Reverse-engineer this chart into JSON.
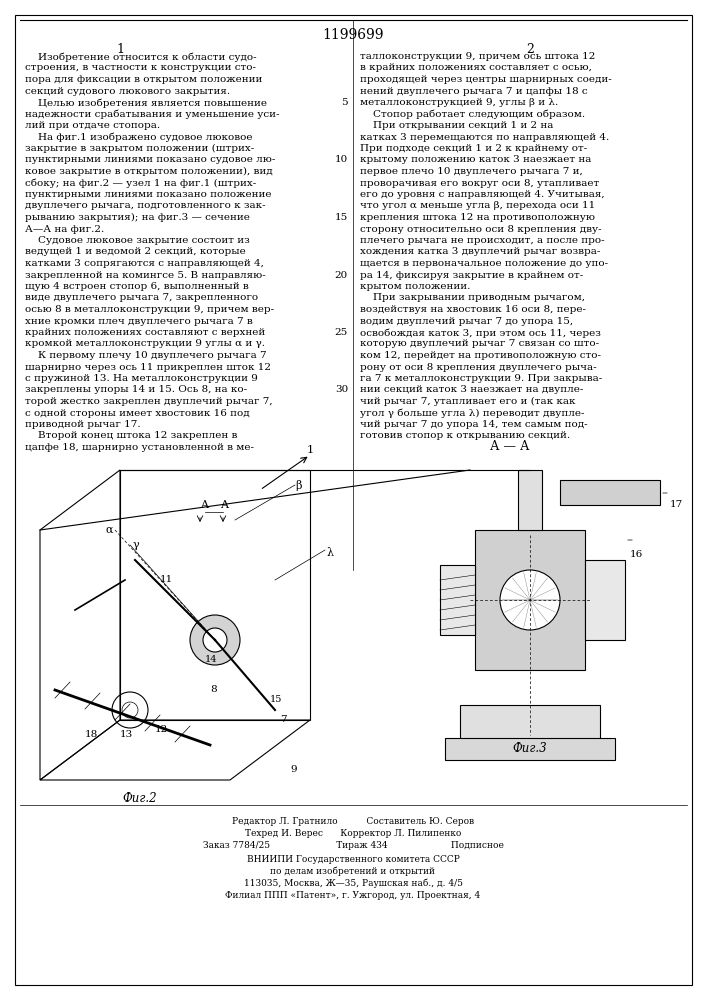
{
  "patent_number": "1199699",
  "col1_header": "1",
  "col2_header": "2",
  "background_color": "#ffffff",
  "text_color": "#000000",
  "col1_text": "    Изобретение относится к области судо-\nстроения, в частности к конструкции сто-\nпора для фиксации в открытом положении\nсекций судового люкового закрытия.\n    Целью изобретения является повышение\nнадежности срабатывания и уменьшение уси-\nлий при отдаче стопора.\n    На фиг.1 изображено судовое люковое\nзакрытие в закрытом положении (штрих-\nпунктирными линиями показано судовое лю-\nковое закрытие в открытом положении), вид\nсбоку; на фиг.2 — узел 1 на фиг.1 (штрих-\nпунктирными линиями показано положение\nдвуплечего рычага, подготовленного к зак-\nрыванию закрытия); на фиг.3 — сечение\nА—А на фиг.2.\n    Судовое люковое закрытие состоит из\nведущей 1 и ведомой 2 секций, которые\nкатками 3 сопрягаются с направляющей 4,\nзакрепленной на комингсе 5. В направляю-\nщую 4 встроен стопор 6, выполненный в\nвиде двуплечего рычага 7, закрепленного\nосью 8 в металлоконструкции 9, причем вер-\nхние кромки плеч двуплечего рычага 7 в\nкрайних положениях составляют с верхней\nкромкой металлоконструкции 9 углы α и γ.\n    К первому плечу 10 двуплечего рычага 7\nшарнирно через ось 11 прикреплен шток 12\nс пружиной 13. На металлоконструкции 9\nзакреплены упоры 14 и 15. Ось 8, на ко-\nторой жестко закреплен двуплечий рычаг 7,\nс одной стороны имеет хвостовик 16 под\nприводной рычаг 17.\n    Второй конец штока 12 закреплен в\nцапфе 18, шарнирно установленной в ме-",
  "col2_text": "таллоконструкции 9, причем ось штока 12\nв крайних положениях составляет с осью,\nпроходящей через центры шарнирных соеди-\nнений двуплечего рычага 7 и цапфы 18 с\nметаллоконструкцией 9, углы β и λ.\n    Стопор работает следующим образом.\n    При открывании секций 1 и 2 на\nкатках 3 перемещаются по направляющей 4.\nПри подходе секций 1 и 2 к крайнему от-\nкрытому положению каток 3 наезжает на\nпервое плечо 10 двуплечего рычага 7 и,\nпроворачивая его вокруг оси 8, утапливает\nего до уровня с направляющей 4. Учитывая,\nчто угол α меньше угла β, перехода оси 11\nкрепления штока 12 на противоположную\nсторону относительно оси 8 крепления дву-\nплечего рычага не происходит, а после про-\nхождения катка 3 двуплечий рычаг возвра-\nщается в первоначальное положение до упо-\nра 14, фиксируя закрытие в крайнем от-\nкрытом положении.\n    При закрывании приводным рычагом,\nвоздействуя на хвостовик 16 оси 8, пере-\nводим двуплечий рычаг 7 до упора 15,\nосвобождая каток 3, при этом ось 11, через\nкоторую двуплечий рычаг 7 связан со што-\nком 12, перейдет на противоположную сто-\nрону от оси 8 крепления двуплечего рыча-\nга 7 к металлоконструкции 9. При закрыва-\nнии секций каток 3 наезжает на двупле-\nчий рычаг 7, утапливает его и (так как\nугол γ больше угла λ) переводит двупле-\nчий рычаг 7 до упора 14, тем самым под-\nготовив стопор к открыванию секций.",
  "line_numbers_col2": [
    5,
    10,
    15,
    20,
    25,
    30
  ],
  "footer_line1": "Редактор Л. Гратнило          Составитель Ю. Серов",
  "footer_line2": "Техред И. Верес      Корректор Л. Пилипенко",
  "footer_line3": "Заказ 7784/25                       Тираж 434                      Подписное",
  "footer_line4": "ВНИИПИ Государственного комитета СССР",
  "footer_line5": "по делам изобретений и открытий",
  "footer_line6": "113035, Москва, Ж—35, Раушская наб., д. 4/5",
  "footer_line7": "Филиал ППП «Патент», г. Ужгород, ул. Проектная, 4",
  "fig2_label": "Фиг.2",
  "fig3_label": "Фиг.3",
  "fig_aa_label": "А — А",
  "font_size_body": 7.5,
  "font_size_header": 9,
  "font_size_patent": 10
}
